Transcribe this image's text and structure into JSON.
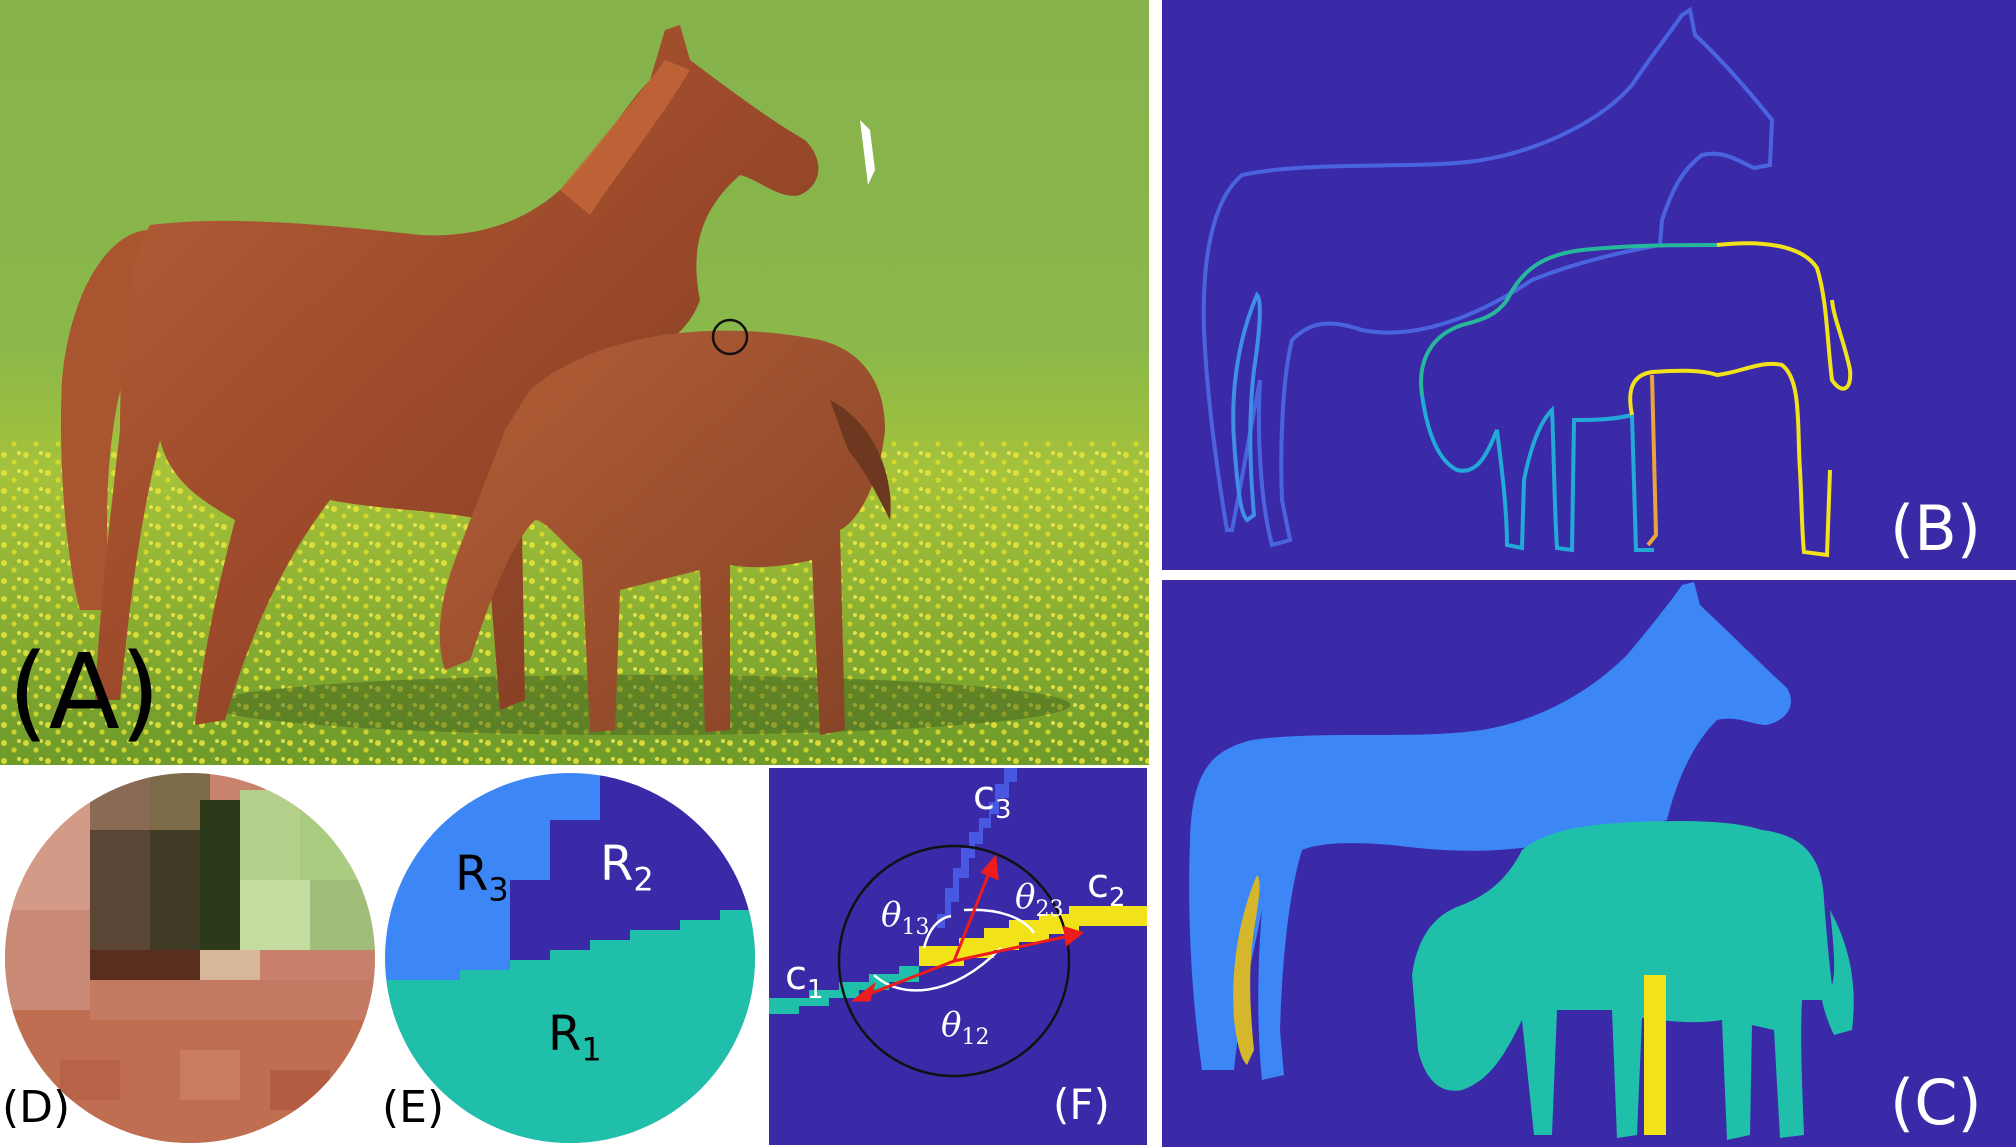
{
  "labels": {
    "a": "(A)",
    "b": "(B)",
    "c": "(C)",
    "d": "(D)",
    "e": "(E)",
    "f": "(F)"
  },
  "regions": {
    "r1": "R",
    "r1_sub": "1",
    "r2": "R",
    "r2_sub": "2",
    "r3": "R",
    "r3_sub": "3"
  },
  "curves": {
    "c1": "c",
    "c1_sub": "1",
    "c2": "c",
    "c2_sub": "2",
    "c3": "c",
    "c3_sub": "3"
  },
  "angles": {
    "t12": "θ",
    "t12_sub": "12",
    "t13": "θ",
    "t13_sub": "13",
    "t23": "θ",
    "t23_sub": "23"
  },
  "colors": {
    "background_dark": "#3b2aa8",
    "mare_fill": "#3d86f5",
    "foal_fill": "#1fbfaa",
    "yellow": "#f2e21a",
    "mustard": "#d4b72a",
    "arrow_red": "#ee1c1c",
    "grass": "#7fb24a",
    "horse_brown": "#a4512f"
  }
}
